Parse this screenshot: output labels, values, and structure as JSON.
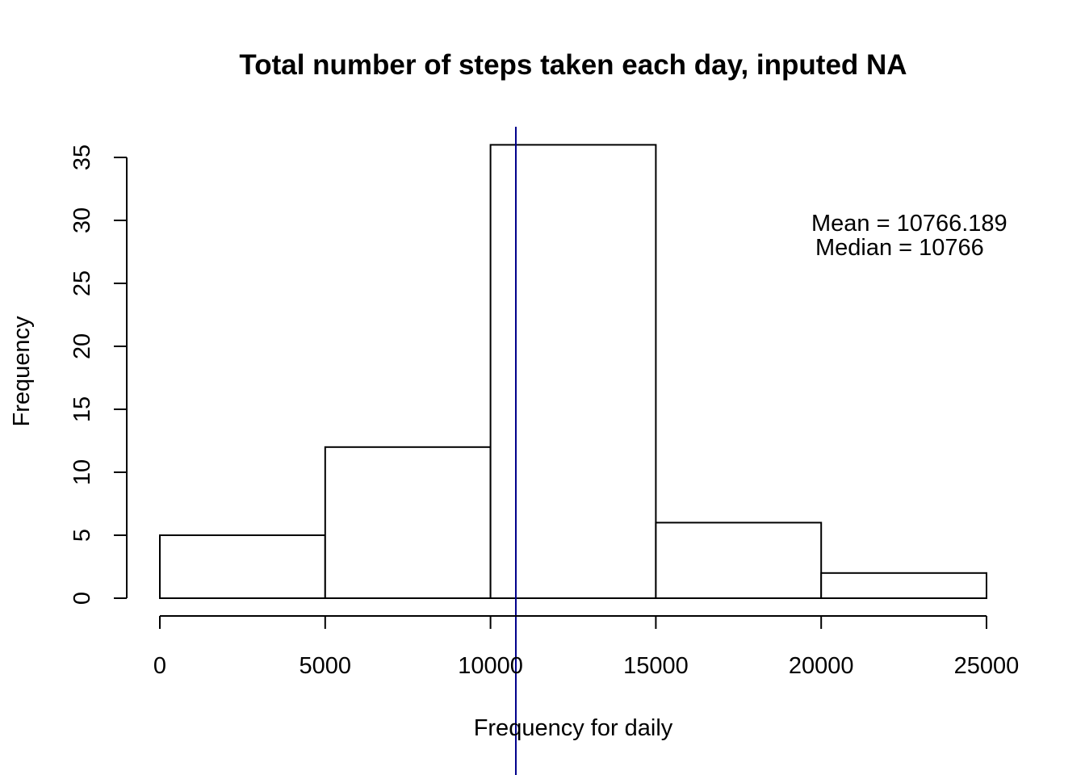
{
  "chart_data": {
    "type": "bar",
    "title": "Total number of steps taken each day, inputed NA",
    "xlabel": "Frequency for daily",
    "ylabel": "Frequency",
    "bins": [
      {
        "start": 0,
        "end": 5000,
        "count": 5
      },
      {
        "start": 5000,
        "end": 10000,
        "count": 12
      },
      {
        "start": 10000,
        "end": 15000,
        "count": 36
      },
      {
        "start": 15000,
        "end": 20000,
        "count": 6
      },
      {
        "start": 20000,
        "end": 25000,
        "count": 2
      }
    ],
    "xlim": [
      0,
      25000
    ],
    "ylim": [
      0,
      36
    ],
    "x_ticks": [
      0,
      5000,
      10000,
      15000,
      20000,
      25000
    ],
    "x_tick_labels": [
      "0",
      "5000",
      "10000",
      "15000",
      "20000",
      "25000"
    ],
    "y_ticks": [
      0,
      5,
      10,
      15,
      20,
      25,
      30,
      35
    ],
    "y_tick_labels": [
      "0",
      "5",
      "10",
      "15",
      "20",
      "25",
      "30",
      "35"
    ],
    "vline": {
      "x": 10766.19,
      "color": "#00008B"
    },
    "annotations": [
      "Mean = 10766.189",
      "Median = 10766"
    ],
    "bar_fill": "#ffffff",
    "bar_stroke": "#000000",
    "grid": false
  }
}
